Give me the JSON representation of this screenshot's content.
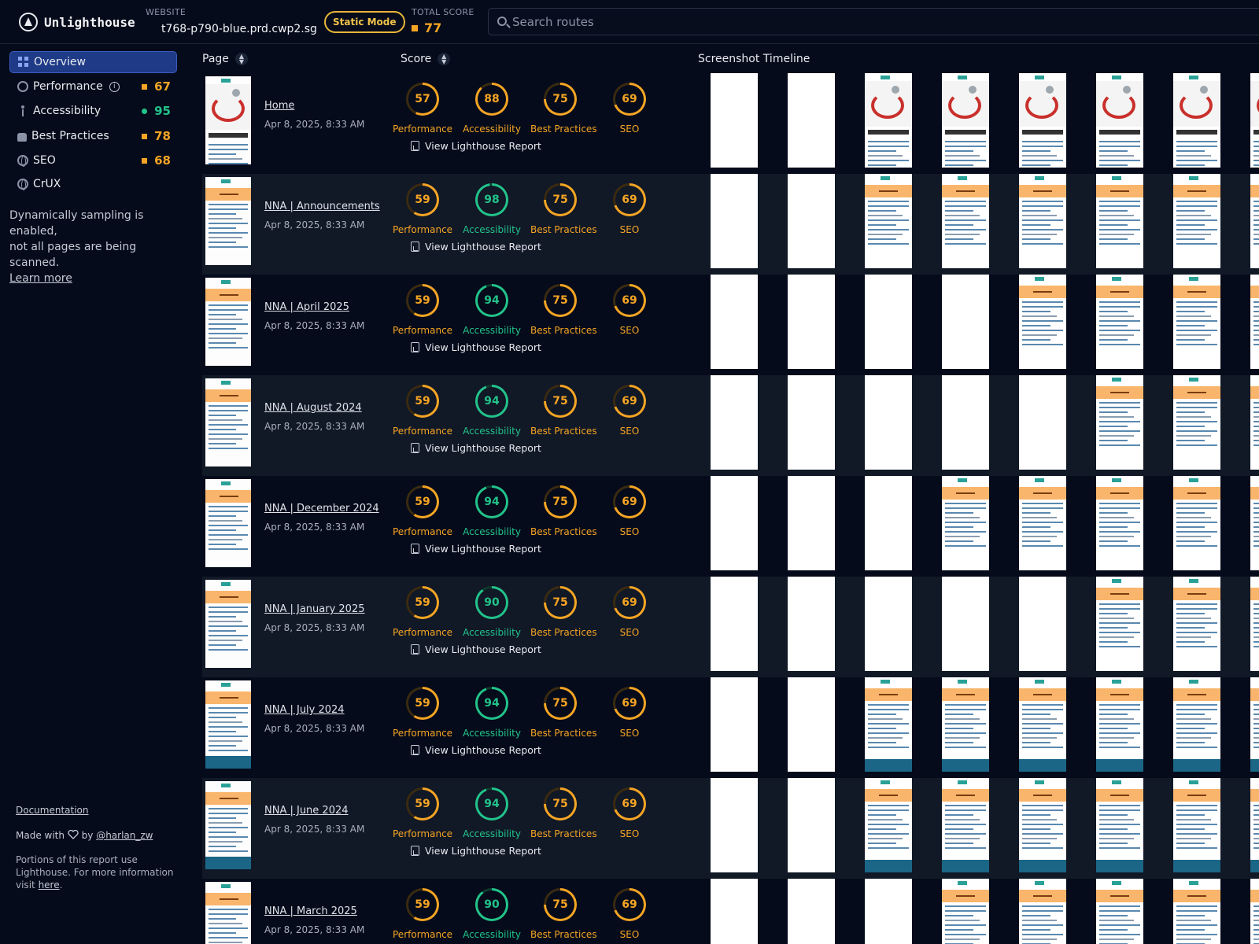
{
  "header": {
    "logo_text": "Unlighthouse",
    "website_label": "WEBSITE",
    "website_value": "t768-p790-blue.prd.cwp2.sg",
    "static_mode": "Static Mode",
    "total_label": "TOTAL SCORE",
    "total_score": "77",
    "search_placeholder": "Search routes"
  },
  "sidebar": {
    "items": [
      {
        "label": "Overview",
        "icon": "grid-icon"
      },
      {
        "label": "Performance",
        "icon": "gauge-icon",
        "score": "67",
        "status": "orange"
      },
      {
        "label": "Accessibility",
        "icon": "person-icon",
        "score": "95",
        "status": "green"
      },
      {
        "label": "Best Practices",
        "icon": "thumb-icon",
        "score": "78",
        "status": "orange"
      },
      {
        "label": "SEO",
        "icon": "globe-icon",
        "score": "68",
        "status": "orange"
      },
      {
        "label": "CrUX",
        "icon": "globe-icon"
      }
    ],
    "sampling_line1": "Dynamically sampling is enabled,",
    "sampling_line2": "not all pages are being scanned.",
    "learn_more": "Learn more",
    "documentation": "Documentation",
    "made_with": "Made with",
    "by": "by",
    "author": "@harlan_zw",
    "portions": "Portions of this report use Lighthouse. For more information visit",
    "here": "here",
    "period": "."
  },
  "table": {
    "col_page": "Page",
    "col_score": "Score",
    "col_timeline": "Screenshot Timeline",
    "report_label": "View Lighthouse Report",
    "metric_labels": [
      "Performance",
      "Accessibility",
      "Best Practices",
      "SEO"
    ],
    "colors": {
      "orange": "#f5a524",
      "green": "#22c38a"
    },
    "rows": [
      {
        "name": "Home",
        "date": "Apr 8, 2025, 8:33 AM",
        "scores": [
          "57",
          "88",
          "75",
          "69"
        ],
        "kind": "home"
      },
      {
        "name": "NNA | Announcements",
        "date": "Apr 8, 2025, 8:33 AM",
        "scores": [
          "59",
          "98",
          "75",
          "69"
        ],
        "kind": "band"
      },
      {
        "name": "NNA | April 2025",
        "date": "Apr 8, 2025, 8:33 AM",
        "scores": [
          "59",
          "94",
          "75",
          "69"
        ],
        "kind": "band"
      },
      {
        "name": "NNA | August 2024",
        "date": "Apr 8, 2025, 8:33 AM",
        "scores": [
          "59",
          "94",
          "75",
          "69"
        ],
        "kind": "band"
      },
      {
        "name": "NNA | December 2024",
        "date": "Apr 8, 2025, 8:33 AM",
        "scores": [
          "59",
          "94",
          "75",
          "69"
        ],
        "kind": "band"
      },
      {
        "name": "NNA | January 2025",
        "date": "Apr 8, 2025, 8:33 AM",
        "scores": [
          "59",
          "90",
          "75",
          "69"
        ],
        "kind": "band"
      },
      {
        "name": "NNA | July 2024",
        "date": "Apr 8, 2025, 8:33 AM",
        "scores": [
          "59",
          "94",
          "75",
          "69"
        ],
        "kind": "footer"
      },
      {
        "name": "NNA | June 2024",
        "date": "Apr 8, 2025, 8:33 AM",
        "scores": [
          "59",
          "94",
          "75",
          "69"
        ],
        "kind": "footer"
      },
      {
        "name": "NNA | March 2025",
        "date": "Apr 8, 2025, 8:33 AM",
        "scores": [
          "59",
          "90",
          "75",
          "69"
        ],
        "kind": "band"
      }
    ],
    "timeline_blank_frames": [
      2,
      2,
      4,
      5,
      3,
      5,
      2,
      2,
      3
    ]
  }
}
